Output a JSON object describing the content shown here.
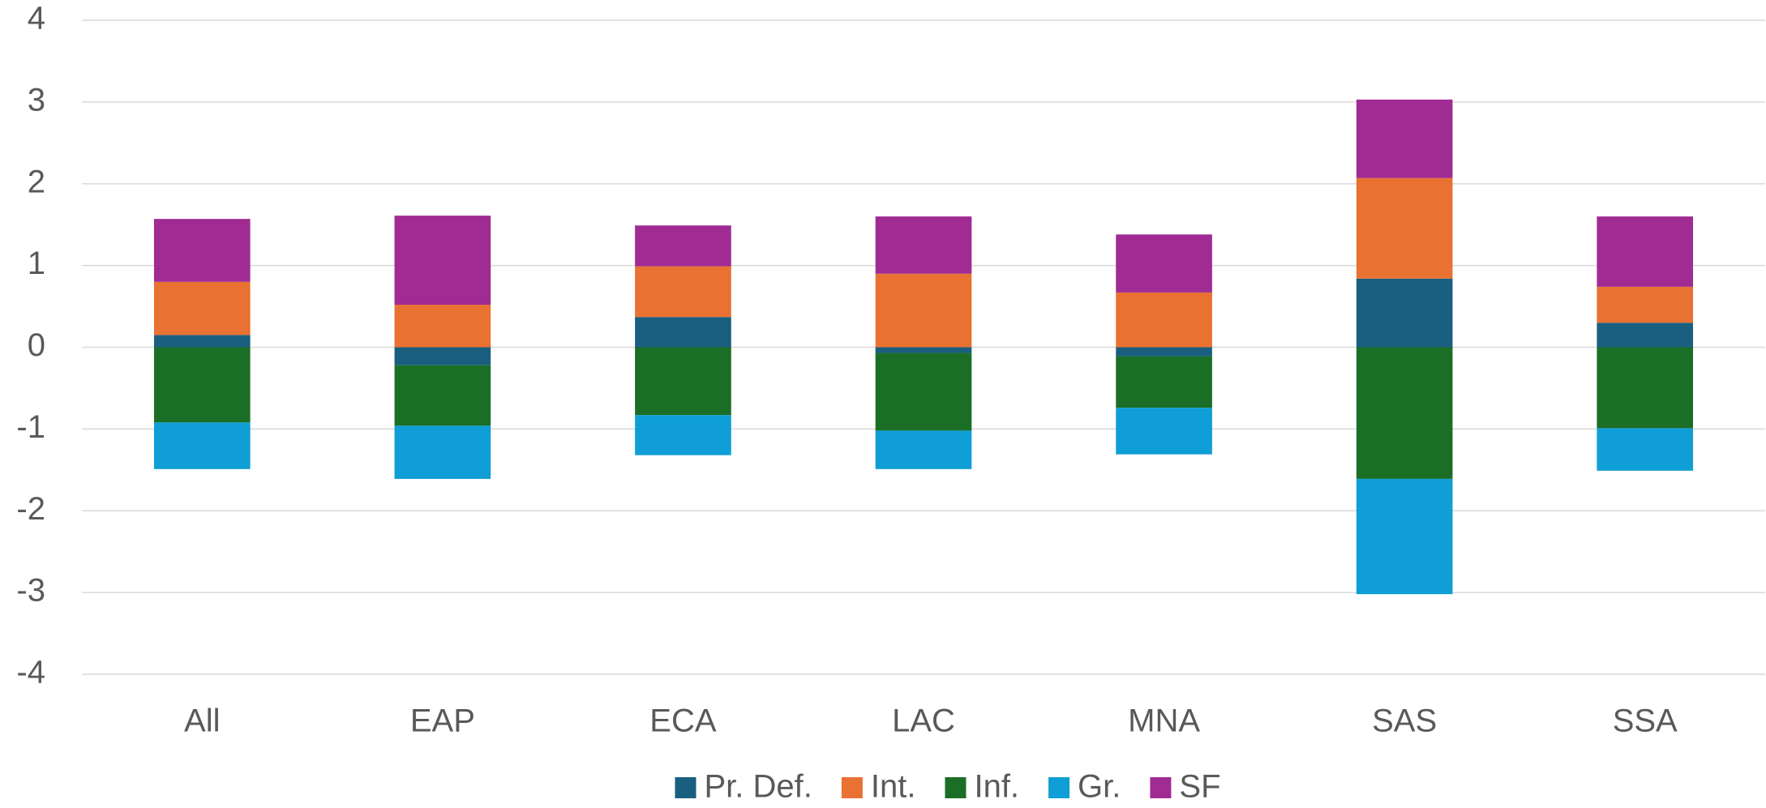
{
  "chart_data": {
    "type": "stacked_bar",
    "categories": [
      "All",
      "EAP",
      "ECA",
      "LAC",
      "MNA",
      "SAS",
      "SSA"
    ],
    "series": [
      {
        "name": "Pr. Def.",
        "color": "#1a5e80",
        "values": [
          0.15,
          -0.22,
          0.37,
          -0.07,
          -0.11,
          0.84,
          0.3
        ]
      },
      {
        "name": "Int.",
        "color": "#e97132",
        "values": [
          0.65,
          0.52,
          0.62,
          0.9,
          0.67,
          1.23,
          0.44
        ]
      },
      {
        "name": "Inf.",
        "color": "#1b6e26",
        "values": [
          -0.92,
          -0.74,
          -0.83,
          -0.95,
          -0.63,
          -1.61,
          -0.99
        ]
      },
      {
        "name": "Gr.",
        "color": "#0f9ed5",
        "values": [
          -0.57,
          -0.65,
          -0.49,
          -0.47,
          -0.57,
          -1.41,
          -0.52
        ]
      },
      {
        "name": "SF",
        "color": "#a02b93",
        "values": [
          0.77,
          1.09,
          0.5,
          0.7,
          0.71,
          0.96,
          0.86
        ]
      }
    ],
    "ylim": [
      -4,
      4
    ],
    "yticks": [
      -4,
      -3,
      -2,
      -1,
      0,
      1,
      2,
      3,
      4
    ],
    "grid": true,
    "legend": "bottom"
  }
}
